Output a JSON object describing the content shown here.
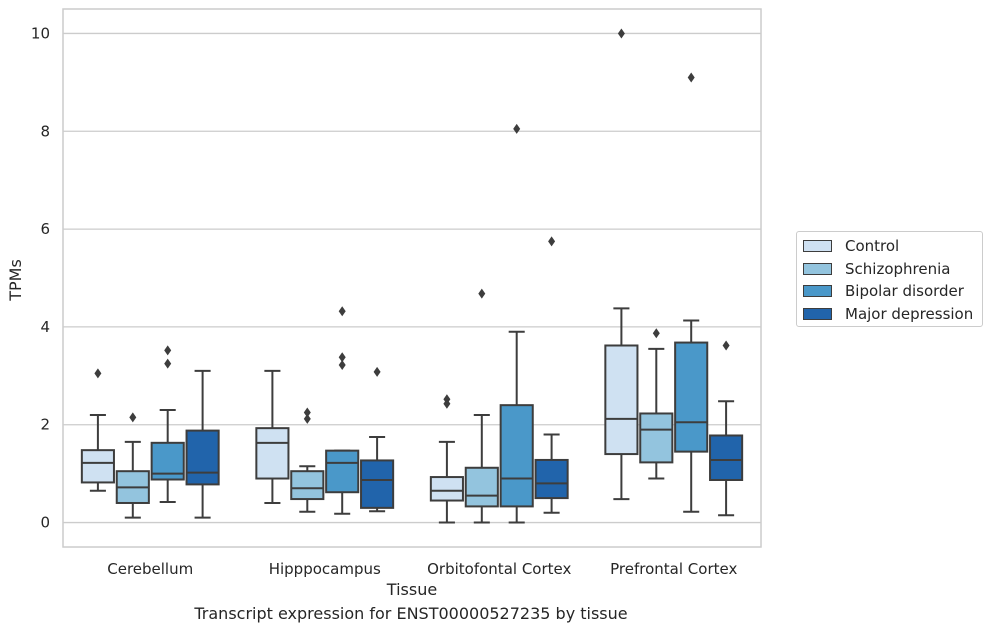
{
  "chart_data": {
    "type": "box",
    "caption": "Transcript expression for ENST00000527235 by tissue",
    "xlabel": "Tissue",
    "ylabel": "TPMs",
    "ylim": [
      -0.5,
      10.5
    ],
    "yticks": [
      0,
      2,
      4,
      6,
      8,
      10
    ],
    "grid": true,
    "legend_position": "right",
    "categories": [
      "Cerebellum",
      "Hipppocampus",
      "Orbitofontal Cortex",
      "Prefrontal Cortex"
    ],
    "series": [
      {
        "name": "Control",
        "color": "#cfe1f2",
        "boxes": [
          {
            "whislo": 0.65,
            "q1": 0.82,
            "med": 1.22,
            "q3": 1.48,
            "whishi": 2.2,
            "fliers": [
              3.05
            ]
          },
          {
            "whislo": 0.4,
            "q1": 0.9,
            "med": 1.63,
            "q3": 1.93,
            "whishi": 3.1,
            "fliers": []
          },
          {
            "whislo": 0.0,
            "q1": 0.45,
            "med": 0.65,
            "q3": 0.93,
            "whishi": 1.65,
            "fliers": [
              2.43,
              2.52
            ]
          },
          {
            "whislo": 0.48,
            "q1": 1.4,
            "med": 2.12,
            "q3": 3.62,
            "whishi": 4.38,
            "fliers": [
              10.0
            ]
          }
        ]
      },
      {
        "name": "Schizophrenia",
        "color": "#93c4de",
        "boxes": [
          {
            "whislo": 0.1,
            "q1": 0.4,
            "med": 0.72,
            "q3": 1.05,
            "whishi": 1.65,
            "fliers": [
              2.15
            ]
          },
          {
            "whislo": 0.22,
            "q1": 0.48,
            "med": 0.7,
            "q3": 1.05,
            "whishi": 1.15,
            "fliers": [
              2.12,
              2.25
            ]
          },
          {
            "whislo": 0.0,
            "q1": 0.33,
            "med": 0.55,
            "q3": 1.12,
            "whishi": 2.2,
            "fliers": [
              4.68
            ]
          },
          {
            "whislo": 0.9,
            "q1": 1.23,
            "med": 1.9,
            "q3": 2.23,
            "whishi": 3.55,
            "fliers": [
              3.87
            ]
          }
        ]
      },
      {
        "name": "Bipolar disorder",
        "color": "#4a98c9",
        "boxes": [
          {
            "whislo": 0.42,
            "q1": 0.88,
            "med": 1.0,
            "q3": 1.63,
            "whishi": 2.3,
            "fliers": [
              3.25,
              3.52
            ]
          },
          {
            "whislo": 0.18,
            "q1": 0.62,
            "med": 1.22,
            "q3": 1.47,
            "whishi": 1.47,
            "fliers": [
              3.22,
              3.38,
              4.32
            ]
          },
          {
            "whislo": 0.0,
            "q1": 0.33,
            "med": 0.9,
            "q3": 2.4,
            "whishi": 3.9,
            "fliers": [
              8.05
            ]
          },
          {
            "whislo": 0.22,
            "q1": 1.45,
            "med": 2.05,
            "q3": 3.68,
            "whishi": 4.13,
            "fliers": [
              9.1
            ]
          }
        ]
      },
      {
        "name": "Major depression",
        "color": "#2164ab",
        "boxes": [
          {
            "whislo": 0.1,
            "q1": 0.78,
            "med": 1.02,
            "q3": 1.88,
            "whishi": 3.1,
            "fliers": []
          },
          {
            "whislo": 0.23,
            "q1": 0.3,
            "med": 0.87,
            "q3": 1.27,
            "whishi": 1.75,
            "fliers": [
              3.08
            ]
          },
          {
            "whislo": 0.2,
            "q1": 0.5,
            "med": 0.8,
            "q3": 1.28,
            "whishi": 1.8,
            "fliers": [
              5.75
            ]
          },
          {
            "whislo": 0.15,
            "q1": 0.87,
            "med": 1.28,
            "q3": 1.78,
            "whishi": 2.48,
            "fliers": [
              3.62
            ]
          }
        ]
      }
    ]
  }
}
